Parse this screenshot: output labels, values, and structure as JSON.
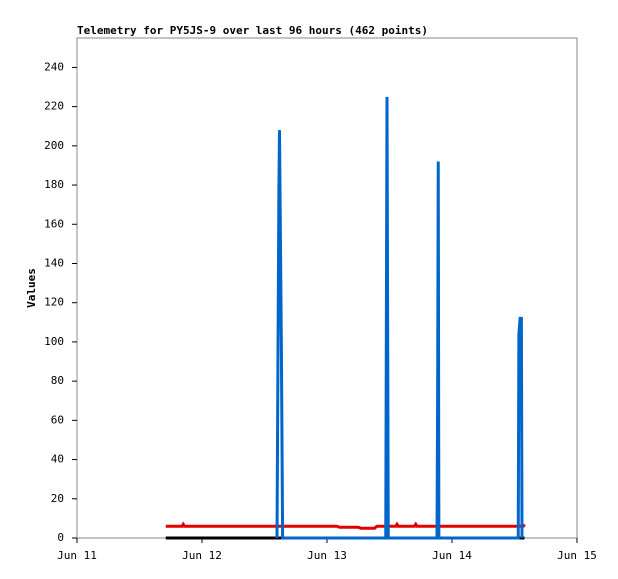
{
  "chart_data": {
    "type": "line",
    "title": "Telemetry for PY5JS-9 over last 96 hours (462 points)",
    "y_label": "Values",
    "xlim": [
      11,
      15
    ],
    "xticks": [
      {
        "value": 11,
        "label": "Jun 11"
      },
      {
        "value": 12,
        "label": "Jun 12"
      },
      {
        "value": 13,
        "label": "Jun 13"
      },
      {
        "value": 14,
        "label": "Jun 14"
      },
      {
        "value": 15,
        "label": "Jun 15"
      }
    ],
    "ylim": [
      0,
      255
    ],
    "yticks": [
      0,
      20,
      40,
      60,
      80,
      100,
      120,
      140,
      160,
      180,
      200,
      220,
      240
    ],
    "series": [
      {
        "color": "#000000",
        "x": [
          11.71,
          14.58
        ],
        "values": [
          0,
          0
        ]
      },
      {
        "color": "#e00000",
        "x": [
          11.71,
          11.84,
          11.85,
          11.86,
          12.6,
          13.08,
          13.1,
          13.25,
          13.27,
          13.38,
          13.4,
          13.55,
          13.56,
          13.57,
          13.7,
          13.71,
          13.72,
          14.57,
          14.58
        ],
        "values": [
          6,
          6,
          7,
          6,
          6,
          6,
          5.5,
          5.5,
          5,
          5,
          6,
          6,
          7,
          6,
          6,
          7,
          6,
          6,
          7
        ]
      },
      {
        "color": "#0066cc",
        "x": [
          12.6,
          12.615,
          12.62,
          12.635,
          12.645,
          13.47,
          13.475,
          13.48,
          13.49,
          13.88,
          13.885,
          13.89,
          13.895,
          14.53,
          14.535,
          14.545,
          14.555,
          14.56
        ],
        "values": [
          0,
          177,
          208,
          97,
          0,
          0,
          112,
          225,
          0,
          0,
          73,
          192,
          0,
          0,
          104,
          112,
          112,
          0
        ]
      }
    ]
  }
}
